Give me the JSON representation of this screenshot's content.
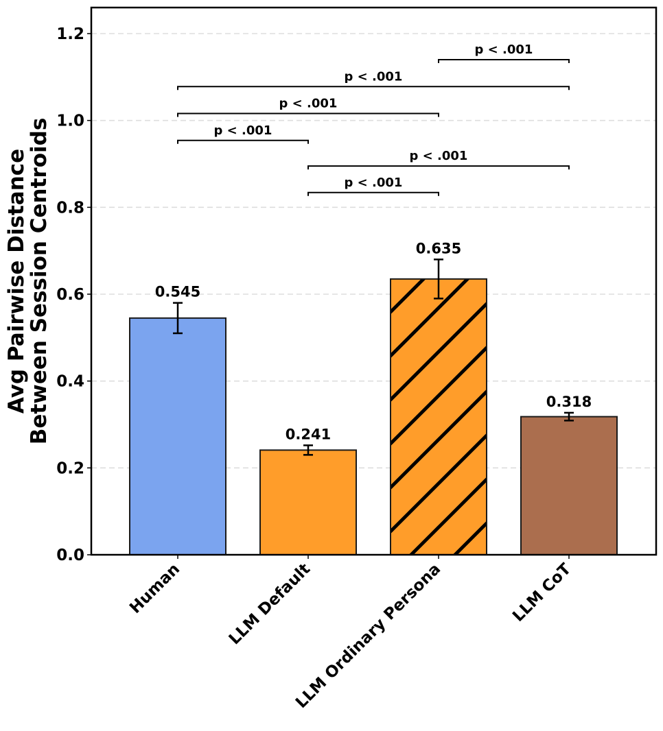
{
  "chart_data": {
    "type": "bar",
    "title": "",
    "xlabel": "",
    "ylabel_lines": [
      "Avg Pairwise Distance",
      "Between Session Centroids"
    ],
    "ylim": [
      0,
      1.26
    ],
    "yticks": [
      0.0,
      0.2,
      0.4,
      0.6,
      0.8,
      1.0,
      1.2
    ],
    "ytick_labels": [
      "0.0",
      "0.2",
      "0.4",
      "0.6",
      "0.8",
      "1.0",
      "1.2"
    ],
    "grid": "horizontal dashed",
    "categories": [
      "Human",
      "LLM Default",
      "LLM Ordinary Persona",
      "LLM CoT"
    ],
    "values": [
      0.545,
      0.241,
      0.635,
      0.318
    ],
    "value_labels": [
      "0.545",
      "0.241",
      "0.635",
      "0.318"
    ],
    "errors": [
      0.035,
      0.011,
      0.045,
      0.009
    ],
    "colors": [
      "#7ba4ef",
      "#ff9d2a",
      "#ff9d2a",
      "#ab6e4e"
    ],
    "hatched": [
      false,
      false,
      true,
      false
    ],
    "significance": [
      {
        "from": 2,
        "to": 3,
        "y": 1.14,
        "label": "p < .001"
      },
      {
        "from": 0,
        "to": 3,
        "y": 1.078,
        "label": "p < .001"
      },
      {
        "from": 0,
        "to": 2,
        "y": 1.016,
        "label": "p < .001"
      },
      {
        "from": 0,
        "to": 1,
        "y": 0.954,
        "label": "p < .001"
      },
      {
        "from": 1,
        "to": 3,
        "y": 0.895,
        "label": "p < .001"
      },
      {
        "from": 1,
        "to": 2,
        "y": 0.834,
        "label": "p < .001"
      }
    ]
  }
}
